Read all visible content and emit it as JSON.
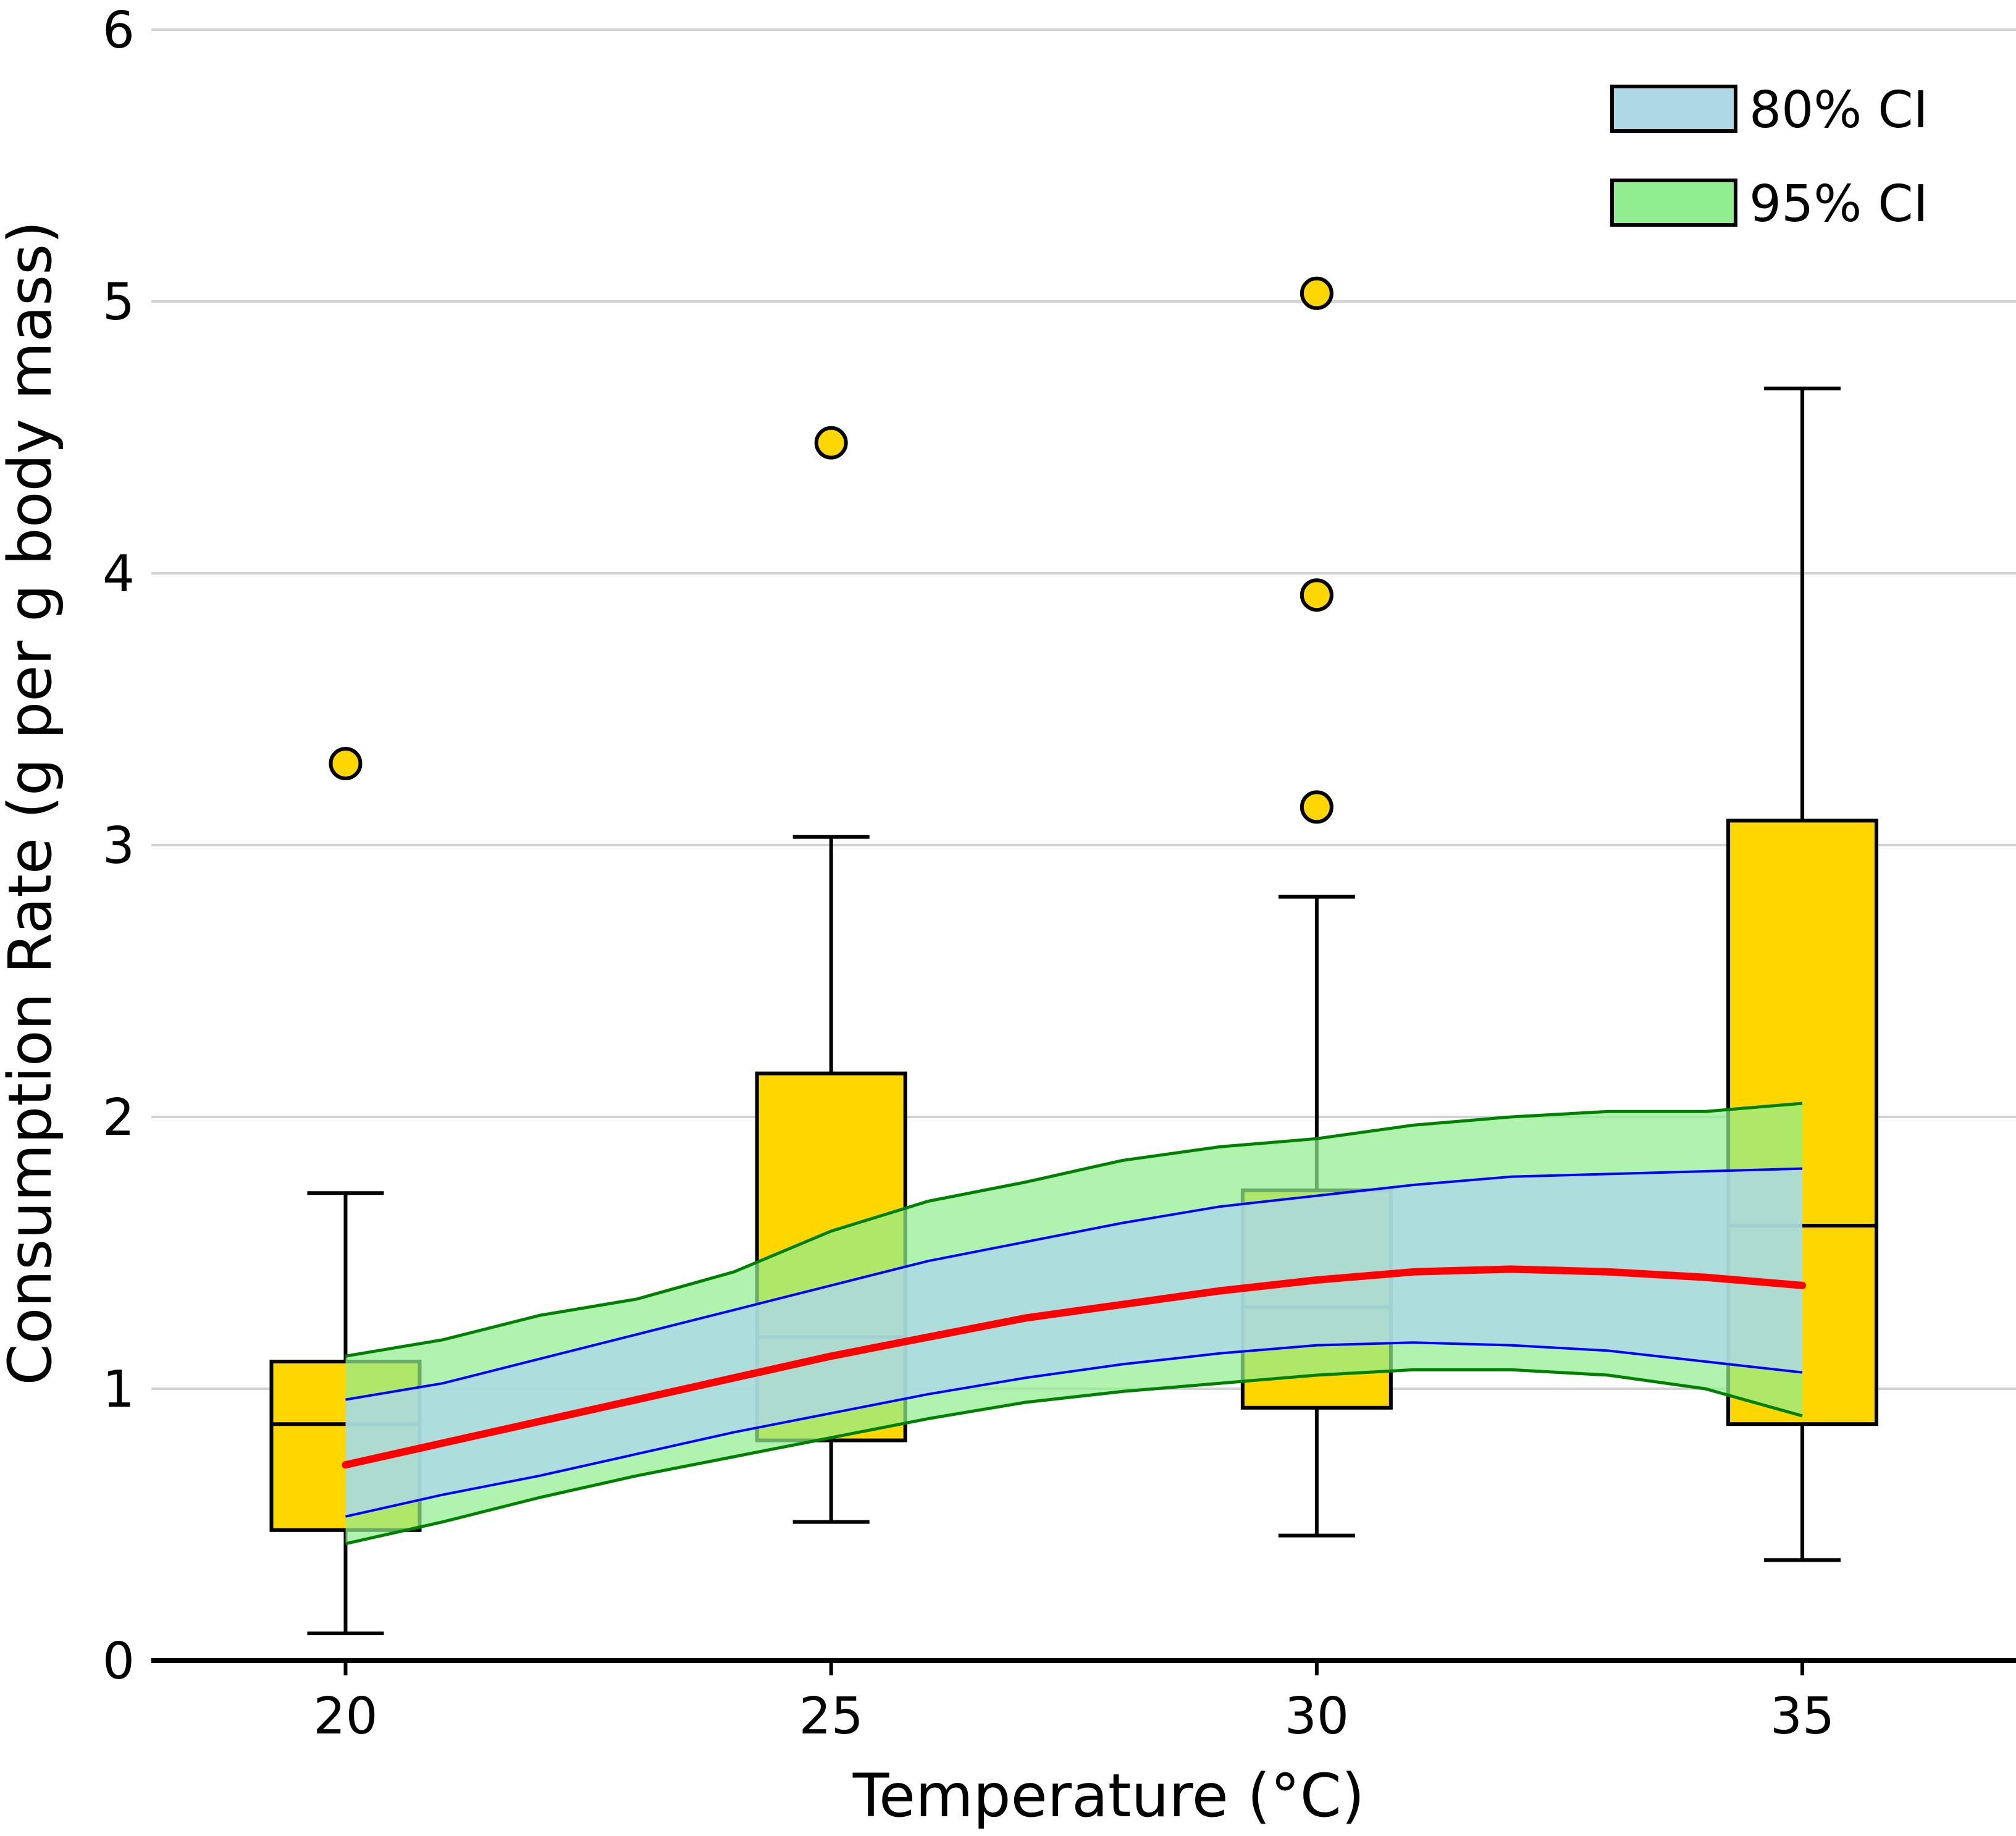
{
  "chart_data": {
    "type": "box",
    "xlabel": "Temperature (°C)",
    "ylabel": "Consumption Rate (g per g body mass)",
    "xlim": [
      18,
      37.2
    ],
    "ylim": [
      0,
      6
    ],
    "x_ticks": [
      "20",
      "25",
      "30",
      "35"
    ],
    "y_ticks": [
      "0",
      "1",
      "2",
      "3",
      "4",
      "5",
      "6"
    ],
    "grid": "horizontal",
    "legend_placement": "top-right",
    "colors": {
      "box_fill": "#FFD700",
      "ci80_fill": "#ADD8E6",
      "ci95_fill": "#90EE90",
      "ci80_line": "#0000FF",
      "ci95_line": "#008000",
      "fit_line": "#FF0000",
      "grid": "#D3D3D3"
    },
    "boxes": [
      {
        "x": 20,
        "whisker_low": 0.1,
        "q1": 0.48,
        "median": 0.87,
        "q3": 1.1,
        "whisker_high": 1.72,
        "outliers": [
          3.3
        ]
      },
      {
        "x": 25,
        "whisker_low": 0.51,
        "q1": 0.81,
        "median": 1.19,
        "q3": 2.16,
        "whisker_high": 3.03,
        "outliers": [
          4.48
        ]
      },
      {
        "x": 30,
        "whisker_low": 0.46,
        "q1": 0.93,
        "median": 1.3,
        "q3": 1.73,
        "whisker_high": 2.81,
        "outliers": [
          3.14,
          3.92,
          5.03
        ]
      },
      {
        "x": 35,
        "whisker_low": 0.37,
        "q1": 0.87,
        "median": 1.6,
        "q3": 3.09,
        "whisker_high": 4.68,
        "outliers": []
      }
    ],
    "fit": {
      "x": [
        20,
        21,
        22,
        23,
        24,
        25,
        26,
        27,
        28,
        29,
        30,
        31,
        32,
        33,
        34,
        35
      ],
      "y": [
        0.72,
        0.8,
        0.88,
        0.96,
        1.04,
        1.12,
        1.19,
        1.26,
        1.31,
        1.36,
        1.4,
        1.43,
        1.44,
        1.43,
        1.41,
        1.38
      ],
      "ci80_low": [
        0.53,
        0.61,
        0.68,
        0.76,
        0.84,
        0.91,
        0.98,
        1.04,
        1.09,
        1.13,
        1.16,
        1.17,
        1.16,
        1.14,
        1.1,
        1.06
      ],
      "ci80_high": [
        0.96,
        1.02,
        1.11,
        1.2,
        1.29,
        1.38,
        1.47,
        1.54,
        1.61,
        1.67,
        1.71,
        1.75,
        1.78,
        1.79,
        1.8,
        1.81
      ],
      "ci95_low": [
        0.43,
        0.51,
        0.6,
        0.68,
        0.75,
        0.82,
        0.89,
        0.95,
        0.99,
        1.02,
        1.05,
        1.07,
        1.07,
        1.05,
        1.0,
        0.9
      ],
      "ci95_high": [
        1.12,
        1.18,
        1.27,
        1.33,
        1.43,
        1.58,
        1.69,
        1.76,
        1.84,
        1.89,
        1.92,
        1.97,
        2.0,
        2.02,
        2.02,
        2.05
      ]
    },
    "legend": [
      {
        "label": "80% CI",
        "color": "#ADD8E6"
      },
      {
        "label": "95% CI",
        "color": "#90EE90"
      }
    ]
  }
}
